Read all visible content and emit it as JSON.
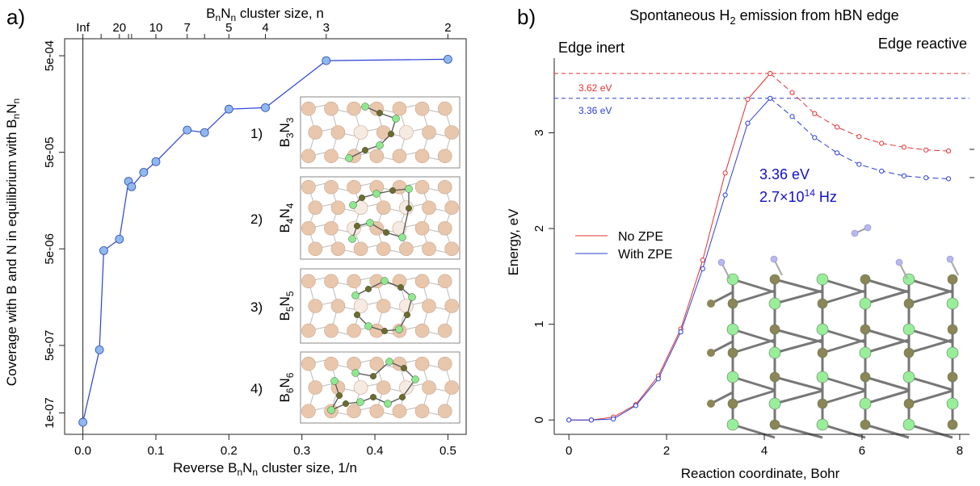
{
  "panel_a": {
    "label": "a)",
    "top_axis_title": {
      "b": "B",
      "n1": "n",
      "n": "N",
      "n2": "n",
      "rest": " cluster size, n"
    },
    "bottom_axis_title": {
      "pre": "Reverse B",
      "n1": "n",
      "n": "N",
      "n2": "n",
      "rest": " cluster size, 1/n"
    },
    "y_axis_title": {
      "pre": "Coverage with B and N in equilibrium with B",
      "n1": "n",
      "n": "N",
      "n2": "n"
    },
    "insets": [
      {
        "num": "1)",
        "b": "B",
        "s1": "3",
        "n": "N",
        "s2": "3"
      },
      {
        "num": "2)",
        "b": "B",
        "s1": "4",
        "n": "N",
        "s2": "4"
      },
      {
        "num": "3)",
        "b": "B",
        "s1": "5",
        "n": "N",
        "s2": "5"
      },
      {
        "num": "4)",
        "b": "B",
        "s1": "6",
        "n": "N",
        "s2": "6"
      }
    ]
  },
  "panel_b": {
    "label": "b)",
    "title_pre": "Spontaneous H",
    "title_sub": "2",
    "title_post": " emission from hBN edge",
    "edge_inert": "Edge inert",
    "edge_reactive": "Edge reactive",
    "barrier_label": "3.36 eV",
    "freq_pre": "2.7×10",
    "freq_exp": "14",
    "freq_post": " Hz",
    "ref_red": "3.62 eV",
    "ref_blue": "3.36 eV",
    "xlabel": "Reaction coordinate, Bohr",
    "ylabel": "Energy, eV"
  },
  "chart_data": [
    {
      "type": "line",
      "scale_y": "log",
      "xlabel": "Reverse BnNn cluster size, 1/n",
      "ylabel": "Coverage with B and N in equilibrium with BnNn",
      "top_xlabel": "BnNn cluster size, n",
      "xlim": [
        -0.025,
        0.525
      ],
      "ylim": [
        6e-08,
        0.00075
      ],
      "x_ticks": [
        0.0,
        0.1,
        0.2,
        0.3,
        0.4,
        0.5
      ],
      "x_tick_labels": [
        "0.0",
        "0.1",
        "0.2",
        "0.3",
        "0.4",
        "0.5"
      ],
      "y_ticks": [
        1e-07,
        5e-07,
        5e-06,
        5e-05,
        0.0005
      ],
      "y_tick_labels": [
        "1e-07",
        "5e-07",
        "5e-06",
        "5e-05",
        "5e-04"
      ],
      "top_ticks": [
        {
          "x": 0.0,
          "label": "Inf"
        },
        {
          "x": 0.025,
          "label": ""
        },
        {
          "x": 0.05,
          "label": "20"
        },
        {
          "x": 0.0625,
          "label": ""
        },
        {
          "x": 0.0667,
          "label": ""
        },
        {
          "x": 0.1,
          "label": "10"
        },
        {
          "x": 0.1429,
          "label": "7"
        },
        {
          "x": 0.1667,
          "label": ""
        },
        {
          "x": 0.2,
          "label": "5"
        },
        {
          "x": 0.25,
          "label": "4"
        },
        {
          "x": 0.3333,
          "label": "3"
        },
        {
          "x": 0.5,
          "label": "2"
        }
      ],
      "series": [
        {
          "color": "#2b3fd6",
          "marker_fill": "#8fb8f0",
          "x": [
            0.0,
            0.0227,
            0.0286,
            0.05,
            0.0625,
            0.0667,
            0.0833,
            0.1,
            0.1429,
            0.1667,
            0.2,
            0.25,
            0.3333,
            0.5
          ],
          "y": [
            8e-08,
            4.5e-07,
            4.8e-06,
            6.3e-06,
            2.5e-05,
            2.2e-05,
            3.1e-05,
            4e-05,
            8.5e-05,
            8e-05,
            0.00014,
            0.000145,
            0.000445,
            0.00046
          ]
        }
      ]
    },
    {
      "type": "line",
      "xlabel": "Reaction coordinate, Bohr",
      "ylabel": "Energy, eV",
      "xlim": [
        -0.3,
        8.2
      ],
      "ylim": [
        -0.15,
        3.78
      ],
      "x_ticks": [
        0,
        2,
        4,
        6,
        8
      ],
      "y_ticks": [
        0,
        1,
        2,
        3
      ],
      "ref_lines": [
        {
          "y": 3.62,
          "color": "#e53030",
          "label": "3.62 eV"
        },
        {
          "y": 3.36,
          "color": "#2b3fd6",
          "label": "3.36 eV"
        }
      ],
      "legend_position": "center-left",
      "series": [
        {
          "name": "No ZPE",
          "color": "#e53030",
          "x": [
            0.0,
            0.46,
            0.91,
            1.37,
            1.83,
            2.29,
            2.74,
            3.2,
            3.66,
            4.12,
            4.57,
            5.03,
            5.49,
            5.94,
            6.4,
            6.86,
            7.31,
            7.77
          ],
          "y": [
            0.0,
            0.0,
            0.03,
            0.16,
            0.46,
            0.95,
            1.67,
            2.58,
            3.35,
            3.62,
            3.42,
            3.2,
            3.06,
            2.96,
            2.89,
            2.85,
            2.82,
            2.81
          ]
        },
        {
          "name": "With ZPE",
          "color": "#2b3fd6",
          "x": [
            0.0,
            0.46,
            0.91,
            1.37,
            1.83,
            2.29,
            2.74,
            3.2,
            3.66,
            4.12,
            4.57,
            5.03,
            5.49,
            5.94,
            6.4,
            6.86,
            7.31,
            7.77
          ],
          "y": [
            0.0,
            0.0,
            0.01,
            0.15,
            0.43,
            0.92,
            1.58,
            2.35,
            3.1,
            3.36,
            3.17,
            2.95,
            2.79,
            2.67,
            2.6,
            2.55,
            2.53,
            2.52
          ]
        }
      ]
    }
  ]
}
